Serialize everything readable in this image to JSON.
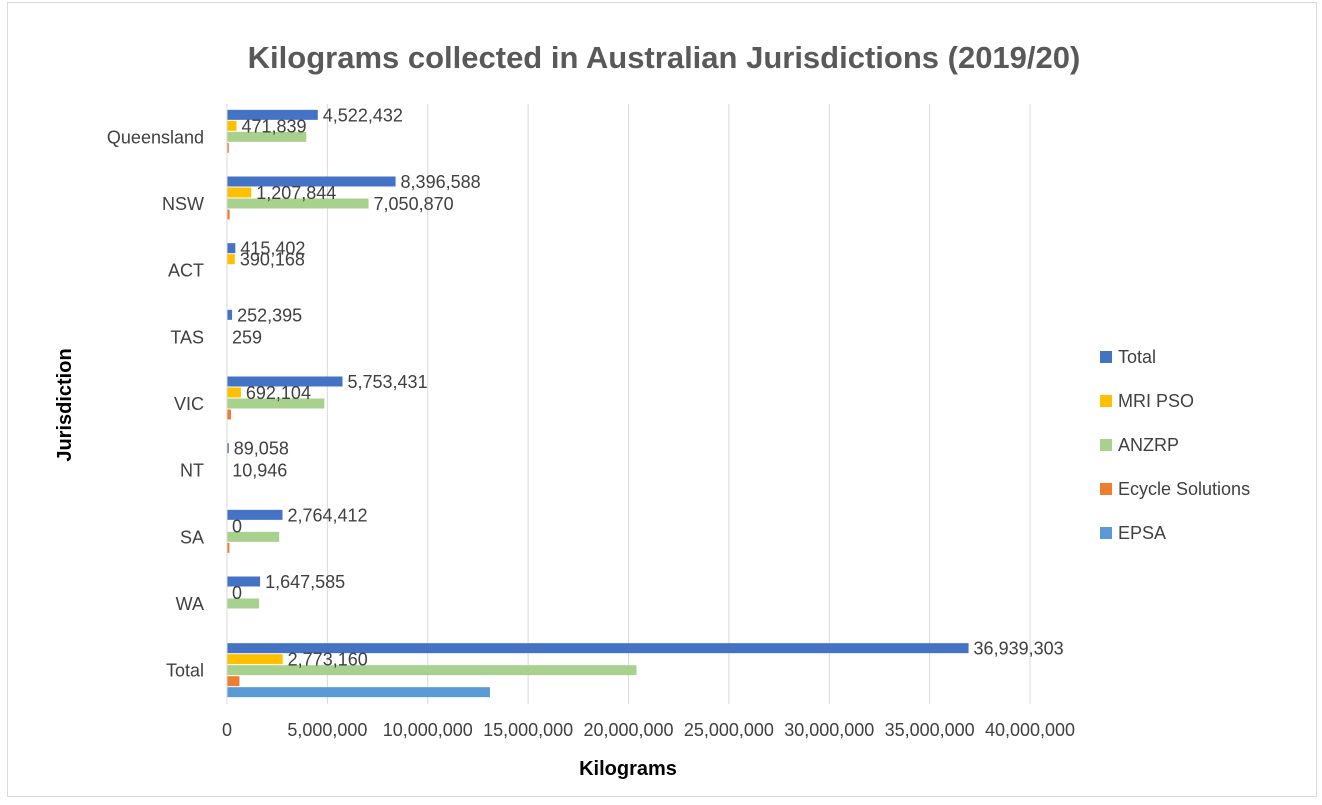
{
  "chart_data": {
    "type": "bar",
    "orientation": "horizontal",
    "title": "Kilograms collected in Australian Jurisdictions (2019/20)",
    "xlabel": "Kilograms",
    "ylabel": "Jurisdiction",
    "categories": [
      "Queensland",
      "NSW",
      "ACT",
      "TAS",
      "VIC",
      "NT",
      "SA",
      "WA",
      "Total"
    ],
    "xlim": [
      0,
      40000000
    ],
    "x_ticks": [
      "0",
      "5,000,000",
      "10,000,000",
      "15,000,000",
      "20,000,000",
      "25,000,000",
      "30,000,000",
      "35,000,000",
      "40,000,000"
    ],
    "grid": "vertical",
    "legend_position": "right",
    "series": [
      {
        "name": "Total",
        "color": "#4472c4",
        "values": [
          4522432,
          8396588,
          415402,
          252395,
          5753431,
          89058,
          2764412,
          1647585,
          36939303
        ],
        "labels": [
          "4,522,432",
          "8,396,588",
          "415,402",
          "252,395",
          "5,753,431",
          "89,058",
          "2,764,412",
          "1,647,585",
          "36,939,303"
        ]
      },
      {
        "name": "MRI PSO",
        "color": "#ffc000",
        "values": [
          471839,
          1207844,
          390168,
          0,
          692104,
          0,
          0,
          0,
          2773160
        ],
        "labels": [
          "471,839",
          "1,207,844",
          "390,168",
          "",
          "692,104",
          "",
          "0",
          "0",
          "2,773,160"
        ]
      },
      {
        "name": "ANZRP",
        "color": "#a9d18e",
        "values": [
          3950000,
          7050870,
          0,
          259,
          4850000,
          10946,
          2600000,
          1600000,
          20400000
        ],
        "labels": [
          "",
          "7,050,870",
          "",
          "259",
          "",
          "10,946",
          "",
          "",
          ""
        ]
      },
      {
        "name": "Ecycle Solutions",
        "color": "#ed7d31",
        "values": [
          90000,
          130000,
          0,
          0,
          200000,
          0,
          120000,
          0,
          620000
        ],
        "labels": [
          "",
          "",
          "",
          "",
          "",
          "",
          "",
          "",
          ""
        ]
      },
      {
        "name": "EPSA",
        "color": "#5b9bd5",
        "values": [
          0,
          0,
          0,
          0,
          0,
          0,
          0,
          0,
          13100000
        ],
        "labels": [
          "",
          "",
          "",
          "",
          "",
          "",
          "",
          "",
          ""
        ]
      }
    ],
    "legend_order": [
      "Total",
      "MRI PSO",
      "ANZRP",
      "Ecycle Solutions",
      "EPSA"
    ]
  }
}
